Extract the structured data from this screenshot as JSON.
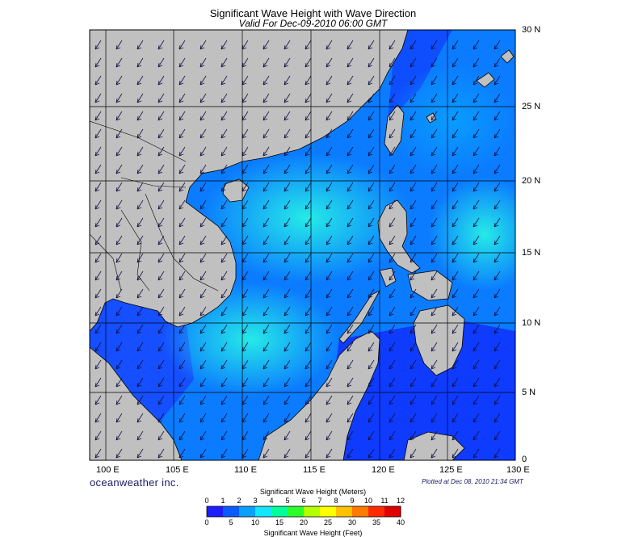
{
  "title": "Significant Wave Height with Wave Direction",
  "subtitle": "Valid For Dec-09-2010 06:00 GMT",
  "lat_labels": [
    "30 N",
    "25 N",
    "20 N",
    "15 N",
    "10 N",
    "5 N",
    "0"
  ],
  "lon_labels": [
    "100 E",
    "105 E",
    "110 E",
    "115 E",
    "120 E",
    "125 E",
    "130 E"
  ],
  "brand": "oceanweather inc.",
  "plotted": "Plotted at Dec 08, 2010 21:34 GMT",
  "colorbar": {
    "title_top": "Significant Wave Height (Meters)",
    "title_bottom": "Significant Wave Height (Feet)",
    "meters_ticks": [
      "0",
      "1",
      "2",
      "3",
      "4",
      "5",
      "6",
      "7",
      "8",
      "9",
      "10",
      "11",
      "12"
    ],
    "feet_ticks": [
      "0",
      "5",
      "10",
      "15",
      "20",
      "25",
      "30",
      "35",
      "40"
    ],
    "colors": [
      "#1d1dff",
      "#0a5bff",
      "#0aa0ff",
      "#14e6ff",
      "#00ff9a",
      "#2bff2b",
      "#b4ff00",
      "#ffff00",
      "#ffc000",
      "#ff7a00",
      "#ff2a00",
      "#e00000"
    ]
  },
  "colors": {
    "land": "#c0c0c0",
    "ocean_deep": "#1030ff",
    "ocean_mid": "#0b7cff",
    "ocean_light": "#19d8ff",
    "ocean_cyan": "#27f0e6"
  },
  "map_extent": {
    "lon_min": 99,
    "lon_max": 130,
    "lat_min": 0,
    "lat_max": 30
  },
  "wave_direction": "NE to SW (predominantly from the northeast)"
}
